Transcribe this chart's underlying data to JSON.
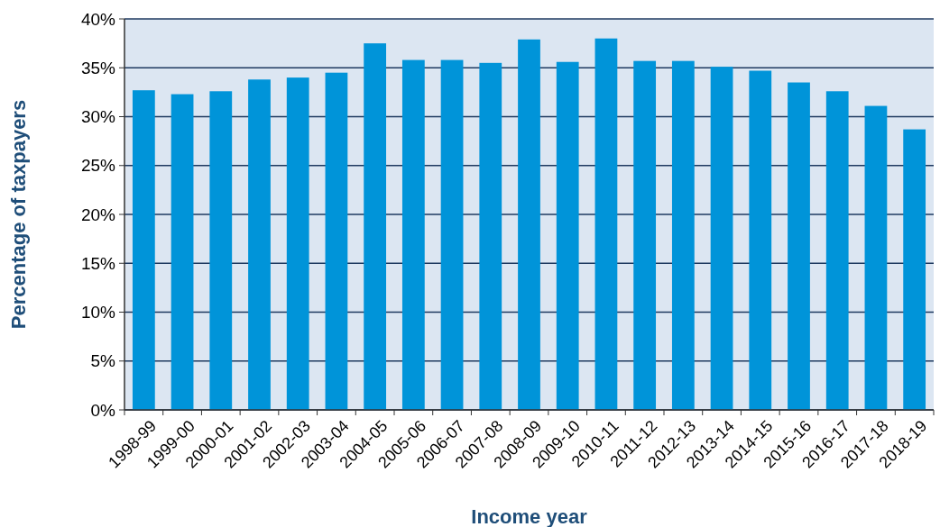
{
  "chart_data": {
    "type": "bar",
    "xlabel": "Income year",
    "ylabel": "Percentage of taxpayers",
    "categories": [
      "1998-99",
      "1999-00",
      "2000-01",
      "2001-02",
      "2002-03",
      "2003-04",
      "2004-05",
      "2005-06",
      "2006-07",
      "2007-08",
      "2008-09",
      "2009-10",
      "2010-11",
      "2011-12",
      "2012-13",
      "2013-14",
      "2014-15",
      "2015-16",
      "2016-17",
      "2017-18",
      "2018-19"
    ],
    "values": [
      32.7,
      32.3,
      32.6,
      33.8,
      34.0,
      34.5,
      37.5,
      35.8,
      35.8,
      35.5,
      37.9,
      35.6,
      38.0,
      35.7,
      35.7,
      35.1,
      34.7,
      33.5,
      32.6,
      31.1,
      28.7
    ],
    "color": "#0094d9",
    "ylim": [
      0,
      40
    ],
    "yticks": [
      {
        "value": 0,
        "label": "0%"
      },
      {
        "value": 5,
        "label": "5%"
      },
      {
        "value": 10,
        "label": "10%"
      },
      {
        "value": 15,
        "label": "15%"
      },
      {
        "value": 20,
        "label": "20%"
      },
      {
        "value": 25,
        "label": "25%"
      },
      {
        "value": 30,
        "label": "30%"
      },
      {
        "value": 35,
        "label": "35%"
      },
      {
        "value": 40,
        "label": "40%"
      }
    ],
    "grid": "y"
  }
}
